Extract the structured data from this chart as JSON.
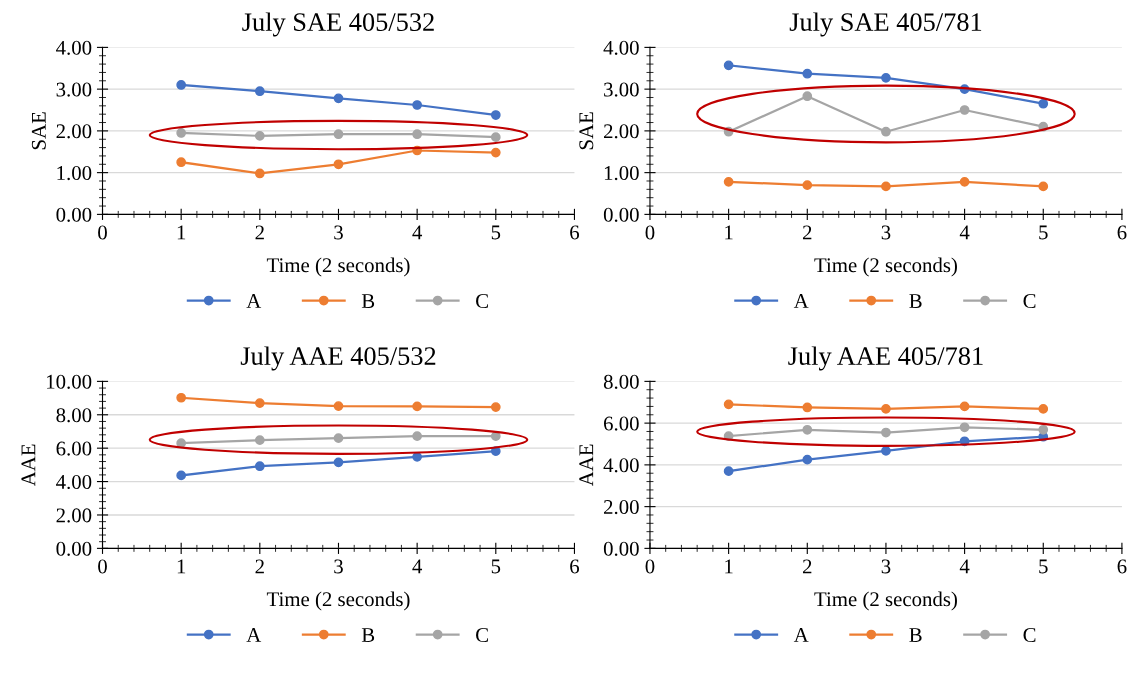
{
  "chart_data": [
    {
      "type": "line",
      "title": "July SAE 405/532",
      "xlabel": "Time (2 seconds)",
      "ylabel": "SAE",
      "x": [
        1,
        2,
        3,
        4,
        5
      ],
      "xlim": [
        0,
        6
      ],
      "xticks": [
        0,
        1,
        2,
        3,
        4,
        5,
        6
      ],
      "ylim": [
        0,
        4
      ],
      "yticks": [
        {
          "value": 0,
          "label": "0.00"
        },
        {
          "value": 1,
          "label": "1.00"
        },
        {
          "value": 2,
          "label": "2.00"
        },
        {
          "value": 3,
          "label": "3.00"
        },
        {
          "value": 4,
          "label": "4.00"
        }
      ],
      "grid": "y",
      "legend": "bottom",
      "marker": "circle",
      "line_style": "solid",
      "series": [
        {
          "name": "A",
          "color": "#4472c4",
          "values": [
            3.1,
            2.95,
            2.78,
            2.62,
            2.38
          ]
        },
        {
          "name": "B",
          "color": "#ed7d31",
          "values": [
            1.25,
            0.98,
            1.2,
            1.53,
            1.48
          ]
        },
        {
          "name": "C",
          "color": "#a5a5a5",
          "values": [
            1.95,
            1.88,
            1.92,
            1.92,
            1.85
          ]
        }
      ]
    },
    {
      "type": "line",
      "title": "July SAE 405/781",
      "xlabel": "Time (2 seconds)",
      "ylabel": "SAE",
      "x": [
        1,
        2,
        3,
        4,
        5
      ],
      "xlim": [
        0,
        6
      ],
      "xticks": [
        0,
        1,
        2,
        3,
        4,
        5,
        6
      ],
      "ylim": [
        0,
        4
      ],
      "yticks": [
        {
          "value": 0,
          "label": "0.00"
        },
        {
          "value": 1,
          "label": "1.00"
        },
        {
          "value": 2,
          "label": "2.00"
        },
        {
          "value": 3,
          "label": "3.00"
        },
        {
          "value": 4,
          "label": "4.00"
        }
      ],
      "grid": "y",
      "legend": "bottom",
      "marker": "circle",
      "line_style": "solid",
      "series": [
        {
          "name": "A",
          "color": "#4472c4",
          "values": [
            3.57,
            3.37,
            3.27,
            3.0,
            2.65
          ]
        },
        {
          "name": "B",
          "color": "#ed7d31",
          "values": [
            0.78,
            0.7,
            0.67,
            0.78,
            0.67
          ]
        },
        {
          "name": "C",
          "color": "#a5a5a5",
          "values": [
            1.98,
            2.83,
            1.98,
            2.5,
            2.1
          ]
        }
      ]
    },
    {
      "type": "line",
      "title": "July AAE 405/532",
      "xlabel": "Time (2 seconds)",
      "ylabel": "AAE",
      "x": [
        1,
        2,
        3,
        4,
        5
      ],
      "xlim": [
        0,
        6
      ],
      "xticks": [
        0,
        1,
        2,
        3,
        4,
        5,
        6
      ],
      "ylim": [
        0,
        10
      ],
      "yticks": [
        {
          "value": 0,
          "label": "0.00"
        },
        {
          "value": 2,
          "label": "2.00"
        },
        {
          "value": 4,
          "label": "4.00"
        },
        {
          "value": 6,
          "label": "6.00"
        },
        {
          "value": 8,
          "label": "8.00"
        },
        {
          "value": 10,
          "label": "10.00"
        }
      ],
      "grid": "y",
      "legend": "bottom",
      "marker": "circle",
      "line_style": "solid",
      "series": [
        {
          "name": "A",
          "color": "#4472c4",
          "values": [
            4.37,
            4.92,
            5.15,
            5.48,
            5.82
          ]
        },
        {
          "name": "B",
          "color": "#ed7d31",
          "values": [
            9.02,
            8.7,
            8.52,
            8.5,
            8.46
          ]
        },
        {
          "name": "C",
          "color": "#a5a5a5",
          "values": [
            6.3,
            6.48,
            6.6,
            6.72,
            6.72
          ]
        }
      ]
    },
    {
      "type": "line",
      "title": "July AAE 405/781",
      "xlabel": "Time (2 seconds)",
      "ylabel": "AAE",
      "x": [
        1,
        2,
        3,
        4,
        5
      ],
      "xlim": [
        0,
        6
      ],
      "xticks": [
        0,
        1,
        2,
        3,
        4,
        5,
        6
      ],
      "ylim": [
        0,
        8
      ],
      "yticks": [
        {
          "value": 0,
          "label": "0.00"
        },
        {
          "value": 2,
          "label": "2.00"
        },
        {
          "value": 4,
          "label": "4.00"
        },
        {
          "value": 6,
          "label": "6.00"
        },
        {
          "value": 8,
          "label": "8.00"
        }
      ],
      "grid": "y",
      "legend": "bottom",
      "marker": "circle",
      "line_style": "solid",
      "series": [
        {
          "name": "A",
          "color": "#4472c4",
          "values": [
            3.7,
            4.25,
            4.67,
            5.13,
            5.35
          ]
        },
        {
          "name": "B",
          "color": "#ed7d31",
          "values": [
            6.9,
            6.75,
            6.68,
            6.8,
            6.68
          ]
        },
        {
          "name": "C",
          "color": "#a5a5a5",
          "values": [
            5.38,
            5.68,
            5.55,
            5.8,
            5.68
          ]
        }
      ]
    }
  ]
}
